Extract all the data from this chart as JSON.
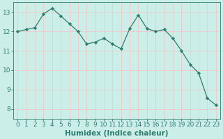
{
  "x": [
    0,
    1,
    2,
    3,
    4,
    5,
    6,
    7,
    8,
    9,
    10,
    11,
    12,
    13,
    14,
    15,
    16,
    17,
    18,
    19,
    20,
    21,
    22,
    23
  ],
  "y": [
    12.0,
    12.1,
    12.2,
    12.9,
    13.2,
    12.8,
    12.4,
    12.0,
    11.35,
    11.45,
    11.65,
    11.35,
    11.1,
    12.15,
    12.85,
    12.15,
    12.0,
    12.1,
    11.65,
    11.0,
    10.3,
    9.85,
    8.55,
    8.2
  ],
  "line_color": "#2e7d6e",
  "marker": "D",
  "marker_size": 2.2,
  "bg_color": "#cceee8",
  "grid_color": "#f0c8c8",
  "xlabel": "Humidex (Indice chaleur)",
  "xlim": [
    -0.5,
    23.5
  ],
  "ylim": [
    7.5,
    13.5
  ],
  "yticks": [
    8,
    9,
    10,
    11,
    12,
    13
  ],
  "xticks": [
    0,
    1,
    2,
    3,
    4,
    5,
    6,
    7,
    8,
    9,
    10,
    11,
    12,
    13,
    14,
    15,
    16,
    17,
    18,
    19,
    20,
    21,
    22,
    23
  ],
  "axis_color": "#2e7d6e",
  "xlabel_fontsize": 7.5,
  "tick_fontsize": 6.5,
  "linewidth": 0.9
}
